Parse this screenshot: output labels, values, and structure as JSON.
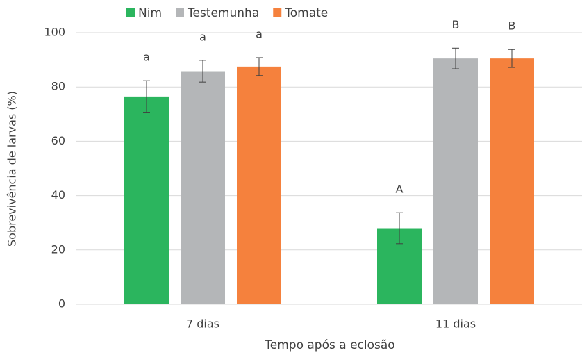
{
  "chart_data": {
    "type": "bar",
    "categories": [
      "7 dias",
      "11 dias"
    ],
    "series": [
      {
        "name": "Nim",
        "color": "#2bb55e",
        "values": [
          76.5,
          28
        ],
        "errors": [
          5.8,
          5.7
        ],
        "letters": [
          "a",
          "A"
        ]
      },
      {
        "name": "Testemunha",
        "color": "#b4b6b8",
        "values": [
          85.8,
          90.5
        ],
        "errors": [
          4,
          3.8
        ],
        "letters": [
          "a",
          "B"
        ]
      },
      {
        "name": "Tomate",
        "color": "#f5813d",
        "values": [
          87.5,
          90.5
        ],
        "errors": [
          3.3,
          3.3
        ],
        "letters": [
          "a",
          "B"
        ]
      }
    ],
    "ylim": [
      0,
      100
    ],
    "yticks": [
      0,
      20,
      40,
      60,
      80,
      100
    ],
    "y_label": "Sobrevivência de larvas (%)",
    "x_label": "Tempo após a eclosão",
    "grid": true,
    "legend": "top"
  }
}
